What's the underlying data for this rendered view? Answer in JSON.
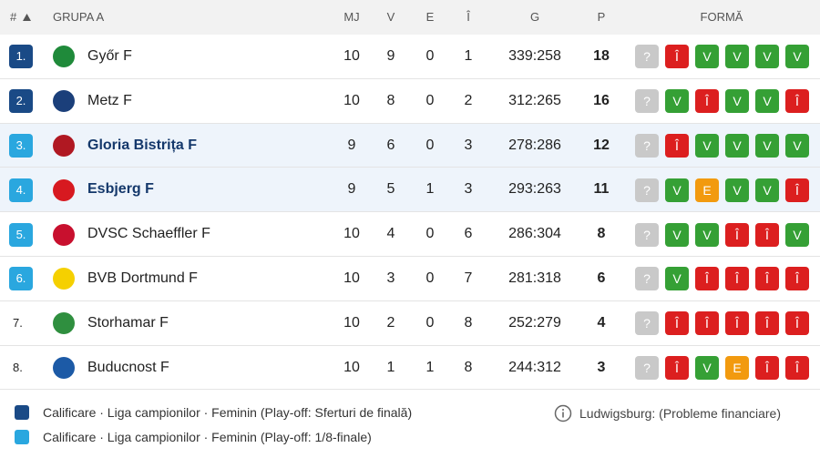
{
  "table": {
    "headers": {
      "rank": "#",
      "group": "GRUPA A",
      "mj": "MJ",
      "v": "V",
      "e": "E",
      "i": "Î",
      "g": "G",
      "p": "P",
      "form": "FORMĂ"
    },
    "rows": [
      {
        "rank": "1.",
        "rank_color": "#1a4a86",
        "team": "Győr F",
        "mj": 10,
        "v": 9,
        "e": 0,
        "i": 1,
        "g": "339:258",
        "p": 18,
        "form": [
          "?",
          "Î",
          "V",
          "V",
          "V",
          "V"
        ]
      },
      {
        "rank": "2.",
        "rank_color": "#1a4a86",
        "team": "Metz F",
        "mj": 10,
        "v": 8,
        "e": 0,
        "i": 2,
        "g": "312:265",
        "p": 16,
        "form": [
          "?",
          "V",
          "Î",
          "V",
          "V",
          "Î"
        ]
      },
      {
        "rank": "3.",
        "rank_color": "#2aa7df",
        "background": "#eef4fb",
        "team": "Gloria Bistrița F",
        "mj": 9,
        "v": 6,
        "e": 0,
        "i": 3,
        "g": "278:286",
        "p": 12,
        "form": [
          "?",
          "Î",
          "V",
          "V",
          "V",
          "V"
        ]
      },
      {
        "rank": "4.",
        "rank_color": "#2aa7df",
        "background": "#eef4fb",
        "team": "Esbjerg F",
        "mj": 9,
        "v": 5,
        "e": 1,
        "i": 3,
        "g": "293:263",
        "p": 11,
        "form": [
          "?",
          "V",
          "E",
          "V",
          "V",
          "Î"
        ]
      },
      {
        "rank": "5.",
        "rank_color": "#2aa7df",
        "team": "DVSC Schaeffler F",
        "mj": 10,
        "v": 4,
        "e": 0,
        "i": 6,
        "g": "286:304",
        "p": 8,
        "form": [
          "?",
          "V",
          "V",
          "Î",
          "Î",
          "V"
        ]
      },
      {
        "rank": "6.",
        "rank_color": "#2aa7df",
        "team": "BVB Dortmund F",
        "mj": 10,
        "v": 3,
        "e": 0,
        "i": 7,
        "g": "281:318",
        "p": 6,
        "form": [
          "?",
          "V",
          "Î",
          "Î",
          "Î",
          "Î"
        ]
      },
      {
        "rank": "7.",
        "team": "Storhamar F",
        "mj": 10,
        "v": 2,
        "e": 0,
        "i": 8,
        "g": "252:279",
        "p": 4,
        "form": [
          "?",
          "Î",
          "Î",
          "Î",
          "Î",
          "Î"
        ]
      },
      {
        "rank": "8.",
        "team": "Buducnost F",
        "mj": 10,
        "v": 1,
        "e": 1,
        "i": 8,
        "g": "244:312",
        "p": 3,
        "form": [
          "?",
          "Î",
          "V",
          "E",
          "Î",
          "Î"
        ]
      }
    ]
  },
  "legend": [
    {
      "color": "#1a4a86",
      "label": "Calificare · Liga campionilor · Feminin (Play-off: Sferturi de finală)"
    },
    {
      "color": "#2aa7df",
      "label": "Calificare · Liga campionilor · Feminin (Play-off: 1/8-finale)"
    }
  ],
  "note": "Ludwigsburg: (Probleme financiare)"
}
